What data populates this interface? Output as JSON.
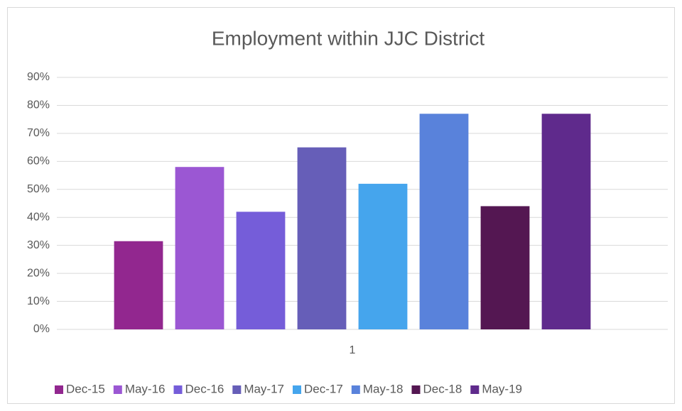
{
  "chart_data": {
    "type": "bar",
    "title": "Employment within JJC District",
    "categories": [
      "1"
    ],
    "series": [
      {
        "name": "Dec-15",
        "color": "#92278f",
        "values": [
          31.5
        ]
      },
      {
        "name": "May-16",
        "color": "#9b57d3",
        "values": [
          58
        ]
      },
      {
        "name": "Dec-16",
        "color": "#755dd9",
        "values": [
          42
        ]
      },
      {
        "name": "May-17",
        "color": "#665eb8",
        "values": [
          65
        ]
      },
      {
        "name": "Dec-17",
        "color": "#45a5ed",
        "values": [
          52
        ]
      },
      {
        "name": "May-18",
        "color": "#5982db",
        "values": [
          77
        ]
      },
      {
        "name": "Dec-18",
        "color": "#541752",
        "values": [
          44
        ]
      },
      {
        "name": "May-19",
        "color": "#5f2a8c",
        "values": [
          77
        ]
      }
    ],
    "ylim": [
      0,
      90
    ],
    "yticks": [
      {
        "value": 0,
        "label": "0%"
      },
      {
        "value": 10,
        "label": "10%"
      },
      {
        "value": 20,
        "label": "20%"
      },
      {
        "value": 30,
        "label": "30%"
      },
      {
        "value": 40,
        "label": "40%"
      },
      {
        "value": 50,
        "label": "50%"
      },
      {
        "value": 60,
        "label": "60%"
      },
      {
        "value": 70,
        "label": "70%"
      },
      {
        "value": 80,
        "label": "80%"
      },
      {
        "value": 90,
        "label": "90%"
      }
    ],
    "grid": true,
    "legend": "bottom"
  }
}
